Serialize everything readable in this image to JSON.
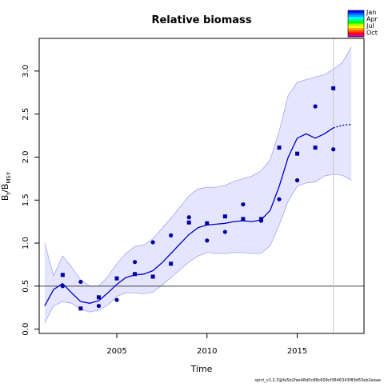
{
  "chart_data": {
    "type": "line",
    "title": "Relative biomass",
    "xlabel": "Time",
    "ylabel_main": "B",
    "ylabel_sub1": "t",
    "ylabel_slash": "/B",
    "ylabel_sub2": "MSY",
    "xlim": [
      2000.7,
      2018.7
    ],
    "ylim": [
      -0.05,
      3.38
    ],
    "x_ticks": [
      2005,
      2010,
      2015
    ],
    "y_ticks": [
      0.0,
      0.5,
      1.0,
      1.5,
      2.0,
      2.5,
      3.0
    ],
    "x_tick_labels": [
      "2005",
      "2010",
      "2015"
    ],
    "y_tick_labels": [
      "0.0",
      "0.5",
      "1.0",
      "1.5",
      "2.0",
      "2.5",
      "3.0"
    ],
    "reference_line_y": 0.5,
    "vertical_line_x": 2017,
    "colors": {
      "estimate": "#0000cc",
      "band_fill": "#e5e5ff",
      "band_edge": "#a6a6ee",
      "points": "#0000a0",
      "reference": "#444444",
      "vline": "#c8c8c8"
    },
    "estimate": {
      "x": [
        2001.0,
        2001.5,
        2002.0,
        2002.5,
        2003.0,
        2003.5,
        2004.0,
        2004.5,
        2005.0,
        2005.5,
        2006.0,
        2006.5,
        2007.0,
        2007.5,
        2008.0,
        2008.5,
        2009.0,
        2009.5,
        2010.0,
        2010.5,
        2011.0,
        2011.5,
        2012.0,
        2012.5,
        2013.0,
        2013.5,
        2014.0,
        2014.5,
        2015.0,
        2015.5,
        2016.0,
        2016.5,
        2017.0
      ],
      "y": [
        0.27,
        0.46,
        0.53,
        0.42,
        0.32,
        0.3,
        0.33,
        0.42,
        0.52,
        0.6,
        0.63,
        0.64,
        0.68,
        0.77,
        0.88,
        0.99,
        1.1,
        1.18,
        1.21,
        1.22,
        1.23,
        1.25,
        1.26,
        1.25,
        1.27,
        1.38,
        1.66,
        2.0,
        2.22,
        2.27,
        2.22,
        2.27,
        2.34
      ]
    },
    "forecast": {
      "x": [
        2017.0,
        2017.5,
        2018.0
      ],
      "y": [
        2.34,
        2.37,
        2.38
      ]
    },
    "ci_upper": {
      "x": [
        2001.0,
        2001.5,
        2002.0,
        2002.5,
        2003.0,
        2003.5,
        2004.0,
        2004.5,
        2005.0,
        2005.5,
        2006.0,
        2006.5,
        2007.0,
        2007.5,
        2008.0,
        2008.5,
        2009.0,
        2009.5,
        2010.0,
        2010.5,
        2011.0,
        2011.5,
        2012.0,
        2012.5,
        2013.0,
        2013.5,
        2014.0,
        2014.5,
        2015.0,
        2015.5,
        2016.0,
        2016.5,
        2017.0,
        2017.5,
        2018.0
      ],
      "y": [
        1.0,
        0.62,
        0.85,
        0.72,
        0.57,
        0.5,
        0.5,
        0.61,
        0.76,
        0.88,
        0.96,
        0.98,
        1.05,
        1.17,
        1.29,
        1.42,
        1.55,
        1.63,
        1.65,
        1.65,
        1.67,
        1.72,
        1.75,
        1.78,
        1.84,
        1.97,
        2.3,
        2.72,
        2.87,
        2.9,
        2.93,
        2.96,
        3.02,
        3.1,
        3.28
      ]
    },
    "ci_lower": {
      "x": [
        2001.0,
        2001.5,
        2002.0,
        2002.5,
        2003.0,
        2003.5,
        2004.0,
        2004.5,
        2005.0,
        2005.5,
        2006.0,
        2006.5,
        2007.0,
        2007.5,
        2008.0,
        2008.5,
        2009.0,
        2009.5,
        2010.0,
        2010.5,
        2011.0,
        2011.5,
        2012.0,
        2012.5,
        2013.0,
        2013.5,
        2014.0,
        2014.5,
        2015.0,
        2015.5,
        2016.0,
        2016.5,
        2017.0,
        2017.5,
        2018.0
      ],
      "y": [
        0.07,
        0.27,
        0.32,
        0.3,
        0.23,
        0.2,
        0.22,
        0.28,
        0.38,
        0.42,
        0.42,
        0.41,
        0.43,
        0.51,
        0.6,
        0.69,
        0.78,
        0.85,
        0.89,
        0.88,
        0.88,
        0.89,
        0.89,
        0.88,
        0.88,
        0.97,
        1.21,
        1.49,
        1.66,
        1.7,
        1.71,
        1.78,
        1.8,
        1.79,
        1.73
      ]
    },
    "series": [
      {
        "marker": "circle",
        "x": [
          2002,
          2003,
          2004,
          2005,
          2006,
          2007,
          2008,
          2009,
          2010,
          2011,
          2012,
          2013,
          2014,
          2015,
          2016,
          2017
        ],
        "y": [
          0.5,
          0.55,
          0.27,
          0.34,
          0.78,
          1.01,
          1.09,
          1.3,
          1.03,
          1.13,
          1.45,
          1.26,
          1.51,
          1.73,
          2.59,
          2.09
        ]
      },
      {
        "marker": "square",
        "x": [
          2002,
          2003,
          2004,
          2005,
          2006,
          2007,
          2008,
          2009,
          2010,
          2011,
          2012,
          2013,
          2014,
          2015,
          2016,
          2017
        ],
        "y": [
          0.63,
          0.24,
          0.37,
          0.59,
          0.64,
          0.61,
          0.76,
          1.24,
          1.23,
          1.31,
          1.28,
          1.28,
          2.11,
          2.04,
          2.11,
          2.8
        ]
      }
    ],
    "legend": {
      "position": "top-right",
      "labels": [
        "Jan",
        "Apr",
        "Jul",
        "Oct"
      ],
      "colors": [
        "#0000ff",
        "#0055ff",
        "#00aaff",
        "#00ffff",
        "#00ff80",
        "#00ff00",
        "#aaff00",
        "#ffff00",
        "#ffaa00",
        "#ff5500",
        "#ff0000",
        "#cc00aa"
      ]
    },
    "footnote": "spict_v1.2.3@fa5b2fae48d0c88c609cf3846343f89d55eb2eaae"
  }
}
